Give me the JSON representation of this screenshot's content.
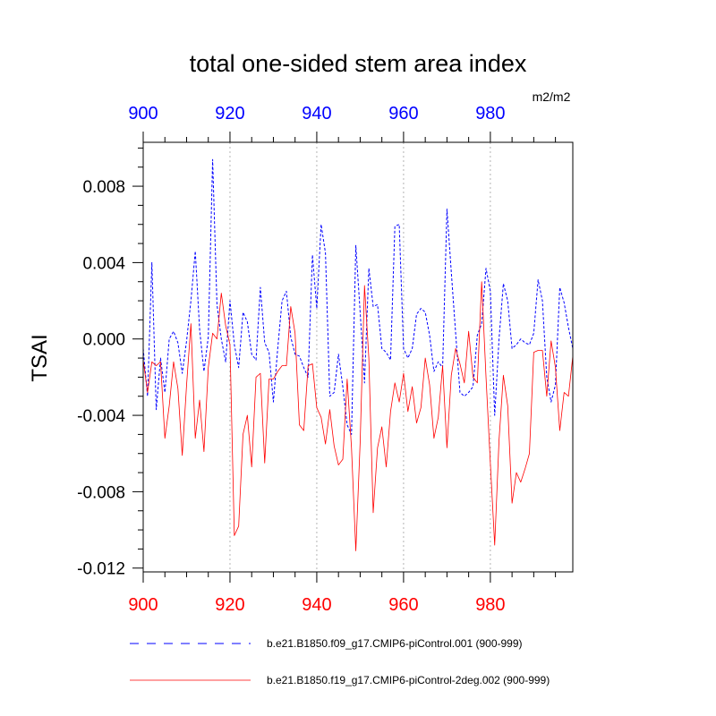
{
  "chart_data": {
    "type": "line",
    "title": "total one-sided stem area index",
    "units": "m2/m2",
    "ylabel": "TSAI",
    "xlabel": "",
    "xlim": [
      900,
      999
    ],
    "ylim": [
      -0.0122,
      0.0103
    ],
    "yticks": [
      -0.012,
      -0.008,
      -0.004,
      0.0,
      0.004,
      0.008
    ],
    "ytick_labels": [
      "-0.012",
      "-0.008",
      "-0.004",
      "0.000",
      "0.004",
      "0.008"
    ],
    "xticks": [
      900,
      920,
      940,
      960,
      980
    ],
    "xtick_labels_bottom": [
      "900",
      "920",
      "940",
      "960",
      "980"
    ],
    "xtick_labels_top": [
      "900",
      "920",
      "940",
      "960",
      "980"
    ],
    "gridlines_x": [
      920,
      940,
      960,
      980
    ],
    "colors": {
      "series1": "#0000ff",
      "series2": "#ff0000",
      "bottom_axis": "#ff0000",
      "top_axis": "#0000ff",
      "grid": "#b4b4b4"
    },
    "x": [
      900,
      901,
      902,
      903,
      904,
      905,
      906,
      907,
      908,
      909,
      910,
      911,
      912,
      913,
      914,
      915,
      916,
      917,
      918,
      919,
      920,
      921,
      922,
      923,
      924,
      925,
      926,
      927,
      928,
      929,
      930,
      931,
      932,
      933,
      934,
      935,
      936,
      937,
      938,
      939,
      940,
      941,
      942,
      943,
      944,
      945,
      946,
      947,
      948,
      949,
      950,
      951,
      952,
      953,
      954,
      955,
      956,
      957,
      958,
      959,
      960,
      961,
      962,
      963,
      964,
      965,
      966,
      967,
      968,
      969,
      970,
      971,
      972,
      973,
      974,
      975,
      976,
      977,
      978,
      979,
      980,
      981,
      982,
      983,
      984,
      985,
      986,
      987,
      988,
      989,
      990,
      991,
      992,
      993,
      994,
      995,
      996,
      997,
      998,
      999
    ],
    "series": [
      {
        "name": "b.e21.B1850.f09_g17.CMIP6-piControl.001 (900-999)",
        "style": "dashed",
        "values": [
          -0.0005,
          -0.003,
          0.004,
          -0.0037,
          -0.001,
          -0.0028,
          0.0,
          0.0004,
          -0.0002,
          -0.0018,
          -0.0001,
          0.002,
          0.0046,
          0.0005,
          -0.0017,
          0.0001,
          0.0094,
          0.0018,
          0.0,
          -0.0012,
          0.002,
          -0.0003,
          -0.0015,
          0.0014,
          0.0009,
          -0.0008,
          -0.0011,
          0.0027,
          -0.0002,
          -0.0007,
          -0.0033,
          -0.0005,
          0.002,
          0.0025,
          0.0001,
          -0.0008,
          -0.0009,
          -0.0015,
          -0.002,
          0.0044,
          0.0016,
          0.006,
          0.0045,
          -0.003,
          -0.0028,
          -0.0008,
          -0.0025,
          -0.0045,
          -0.005,
          0.0049,
          0.0014,
          -0.0023,
          0.0037,
          0.0017,
          0.0018,
          -0.0005,
          -0.0007,
          -0.0011,
          0.0059,
          0.006,
          -0.0005,
          -0.001,
          -0.0005,
          0.0013,
          0.0016,
          0.0014,
          0.0002,
          -0.0017,
          -0.0012,
          -0.0015,
          0.0068,
          0.0035,
          0.0003,
          -0.0028,
          -0.003,
          -0.0028,
          -0.0025,
          0.0002,
          0.0008,
          0.0037,
          0.0025,
          -0.004,
          0.0,
          0.0029,
          0.002,
          -0.0005,
          -0.0003,
          0.0,
          -0.0002,
          -0.0003,
          0.0003,
          0.0031,
          0.002,
          -0.002,
          -0.0033,
          -0.0024,
          0.0027,
          0.0019,
          0.0006,
          -0.0005
        ]
      },
      {
        "name": "b.e21.B1850.f19_g17.CMIP6-piControl-2deg.002 (900-999)",
        "style": "solid",
        "values": [
          -0.0011,
          -0.0028,
          -0.0012,
          -0.0014,
          -0.0012,
          -0.0052,
          -0.0035,
          -0.0012,
          -0.0026,
          -0.0061,
          -0.0024,
          0.0008,
          -0.0052,
          -0.0032,
          -0.0059,
          -0.0015,
          0.0003,
          0.0,
          0.0024,
          0.0007,
          -0.0003,
          -0.0103,
          -0.0098,
          -0.005,
          -0.004,
          -0.0067,
          -0.002,
          -0.0018,
          -0.0065,
          -0.0021,
          -0.0021,
          -0.0017,
          -0.0014,
          -0.0014,
          0.0017,
          0.0003,
          -0.0045,
          -0.0048,
          -0.0014,
          -0.0013,
          -0.0036,
          -0.0041,
          -0.0055,
          -0.0037,
          -0.0056,
          -0.0066,
          -0.0063,
          -0.0021,
          -0.0057,
          -0.0111,
          -0.0054,
          0.0028,
          -0.001,
          -0.0091,
          -0.0057,
          -0.0046,
          -0.0067,
          -0.0038,
          -0.0023,
          -0.0033,
          -0.0018,
          -0.0038,
          -0.0025,
          -0.0044,
          -0.0036,
          -0.001,
          -0.0024,
          -0.0052,
          -0.0041,
          -0.0014,
          -0.0057,
          -0.0019,
          -0.0005,
          -0.0013,
          -0.0023,
          0.0004,
          -0.002,
          -0.0023,
          0.003,
          -0.002,
          -0.0065,
          -0.0108,
          -0.0053,
          -0.0019,
          -0.0035,
          -0.0086,
          -0.007,
          -0.0075,
          -0.0068,
          -0.006,
          -0.0007,
          -0.0006,
          -0.0006,
          -0.003,
          -0.0001,
          -0.0015,
          -0.0048,
          -0.0028,
          -0.003,
          -0.0009
        ]
      }
    ],
    "legend": [
      {
        "label": "b.e21.B1850.f09_g17.CMIP6-piControl.001 (900-999)",
        "color": "#0000ff",
        "style": "dashed"
      },
      {
        "label": "b.e21.B1850.f19_g17.CMIP6-piControl-2deg.002 (900-999)",
        "color": "#ff0000",
        "style": "solid"
      }
    ]
  }
}
